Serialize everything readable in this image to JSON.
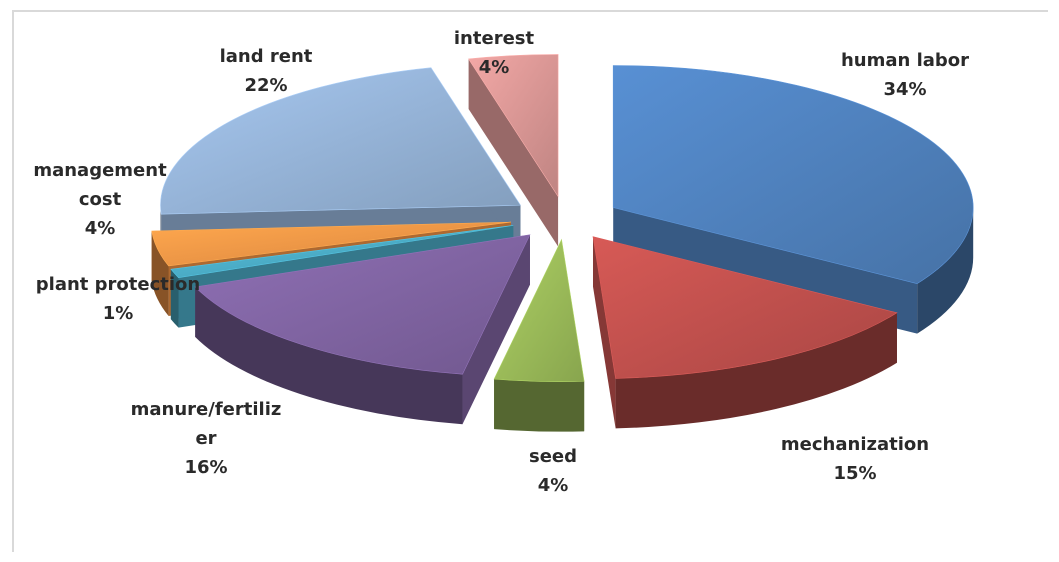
{
  "chart_data": {
    "type": "pie",
    "style": "3d-exploded",
    "title": "",
    "slices": [
      {
        "label_lines": [
          "human labor"
        ],
        "value": 34,
        "value_label": "34%",
        "color": "#4f81bd"
      },
      {
        "label_lines": [
          "mechanization"
        ],
        "value": 15,
        "value_label": "15%",
        "color": "#c0504d"
      },
      {
        "label_lines": [
          "seed"
        ],
        "value": 4,
        "value_label": "4%",
        "color": "#9bbb59"
      },
      {
        "label_lines": [
          "manure/fertiliz",
          "er"
        ],
        "value": 16,
        "value_label": "16%",
        "color": "#8064a2"
      },
      {
        "label_lines": [
          "plant protection"
        ],
        "value": 1,
        "value_label": "1%",
        "color": "#4bacc6"
      },
      {
        "label_lines": [
          "management",
          "cost"
        ],
        "value": 4,
        "value_label": "4%",
        "color": "#f79646"
      },
      {
        "label_lines": [
          "land rent"
        ],
        "value": 22,
        "value_label": "22%",
        "color": "#95b3d7"
      },
      {
        "label_lines": [
          "interest"
        ],
        "value": 4,
        "value_label": "4%",
        "color": "#d99694"
      }
    ],
    "legend": "none"
  }
}
